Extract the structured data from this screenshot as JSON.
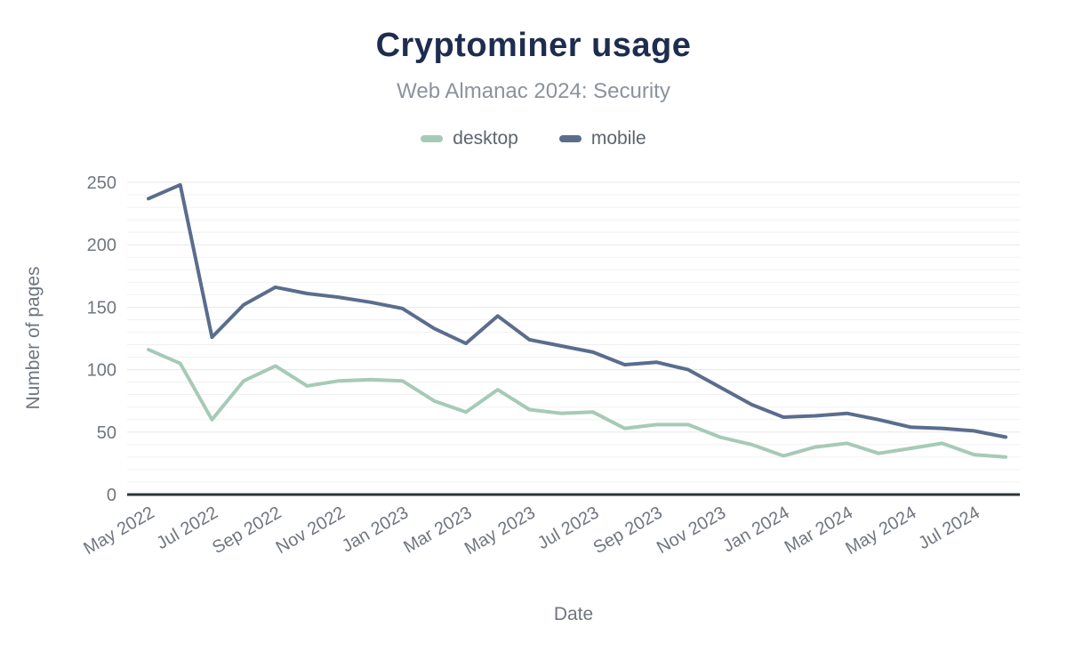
{
  "header": {
    "title": "Cryptominer usage",
    "subtitle": "Web Almanac 2024: Security"
  },
  "legend": [
    {
      "label": "desktop",
      "color": "#a6cab8"
    },
    {
      "label": "mobile",
      "color": "#5b6d8d"
    }
  ],
  "colors": {
    "title": "#1e2d4f",
    "subtitle": "#8c929d",
    "axis_text": "#70767f",
    "axis_line": "#2e3338",
    "grid_minor": "#f1f1f1",
    "grid_major": "#e7e7e7",
    "background": "#ffffff"
  },
  "chart_data": {
    "type": "line",
    "title": "Cryptominer usage",
    "subtitle": "Web Almanac 2024: Security",
    "xlabel": "Date",
    "ylabel": "Number of pages",
    "ylim": [
      0,
      250
    ],
    "y_ticks": [
      0,
      50,
      100,
      150,
      200,
      250
    ],
    "minor_grid_step": 10,
    "grid": true,
    "legend_position": "top",
    "categories": [
      "May 2022",
      "Jun 2022",
      "Jul 2022",
      "Aug 2022",
      "Sep 2022",
      "Oct 2022",
      "Nov 2022",
      "Dec 2022",
      "Jan 2023",
      "Feb 2023",
      "Mar 2023",
      "Apr 2023",
      "May 2023",
      "Jun 2023",
      "Jul 2023",
      "Aug 2023",
      "Sep 2023",
      "Oct 2023",
      "Nov 2023",
      "Dec 2023",
      "Jan 2024",
      "Feb 2024",
      "Mar 2024",
      "Apr 2024",
      "May 2024",
      "Jun 2024",
      "Jul 2024",
      "Aug 2024"
    ],
    "x_tick_labels": [
      "May 2022",
      "Jul 2022",
      "Sep 2022",
      "Nov 2022",
      "Jan 2023",
      "Mar 2023",
      "May 2023",
      "Jul 2023",
      "Sep 2023",
      "Nov 2023",
      "Jan 2024",
      "Mar 2024",
      "May 2024",
      "Jul 2024"
    ],
    "series": [
      {
        "name": "desktop",
        "color": "#a6cab8",
        "values": [
          116,
          105,
          60,
          91,
          103,
          87,
          91,
          92,
          91,
          75,
          66,
          84,
          68,
          65,
          66,
          53,
          56,
          56,
          46,
          40,
          31,
          38,
          41,
          33,
          37,
          41,
          32,
          30
        ]
      },
      {
        "name": "mobile",
        "color": "#5b6d8d",
        "values": [
          237,
          248,
          126,
          152,
          166,
          161,
          158,
          154,
          149,
          133,
          121,
          143,
          124,
          119,
          114,
          104,
          106,
          100,
          86,
          72,
          62,
          63,
          65,
          60,
          54,
          53,
          51,
          46
        ]
      }
    ]
  }
}
